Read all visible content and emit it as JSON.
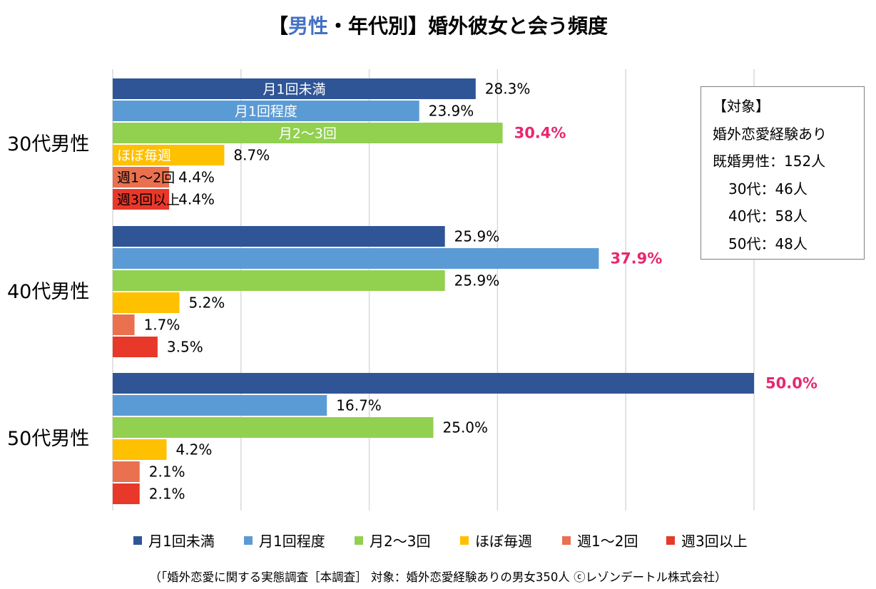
{
  "chart_data": {
    "type": "bar",
    "orientation": "horizontal",
    "title_bracket_open": "【",
    "title_highlight": "男性",
    "title_rest": "・年代別】婚外彼女と会う頻度",
    "groups": [
      "30代男性",
      "40代男性",
      "50代男性"
    ],
    "series": [
      {
        "name": "月1回未満",
        "color": "#2f5597",
        "values": [
          28.3,
          25.9,
          50.0
        ]
      },
      {
        "name": "月1回程度",
        "color": "#5b9bd5",
        "values": [
          23.9,
          37.9,
          16.7
        ]
      },
      {
        "name": "月2～3回",
        "color": "#92d050",
        "values": [
          30.4,
          25.9,
          25.0
        ]
      },
      {
        "name": "ほぼ毎週",
        "color": "#ffc000",
        "values": [
          8.7,
          5.2,
          4.2
        ]
      },
      {
        "name": "週1～2回",
        "color": "#e97150",
        "values": [
          4.4,
          1.7,
          2.1
        ]
      },
      {
        "name": "週3回以上",
        "color": "#e8382a",
        "values": [
          4.4,
          3.5,
          2.1
        ]
      }
    ],
    "value_labels": [
      [
        "28.3%",
        "23.9%",
        "30.4%",
        "8.7%",
        "4.4%",
        "4.4%"
      ],
      [
        "25.9%",
        "37.9%",
        "25.9%",
        "5.2%",
        "1.7%",
        "3.5%"
      ],
      [
        "50.0%",
        "16.7%",
        "25.0%",
        "4.2%",
        "2.1%",
        "2.1%"
      ]
    ],
    "highlight": [
      [
        0,
        2
      ],
      [
        1,
        1
      ],
      [
        2,
        0
      ]
    ],
    "highlight_color": "#e8266e",
    "xlim": [
      0,
      50
    ],
    "grid": true,
    "legend_position": "bottom",
    "footnote": "（「婚外恋愛に関する実態調査［本調査］ 対象：婚外恋愛経験ありの男女350人 ⓒレゾンデートル株式会社）"
  },
  "info_box": {
    "header": "【対象】",
    "line1": "婚外恋愛経験あり",
    "line2": "既婚男性：152人",
    "line3": "30代：46人",
    "line4": "40代：58人",
    "line5": "50代：48人"
  },
  "colors": {
    "title_accent": "#4472c4",
    "grid": "#d9d9d9"
  }
}
